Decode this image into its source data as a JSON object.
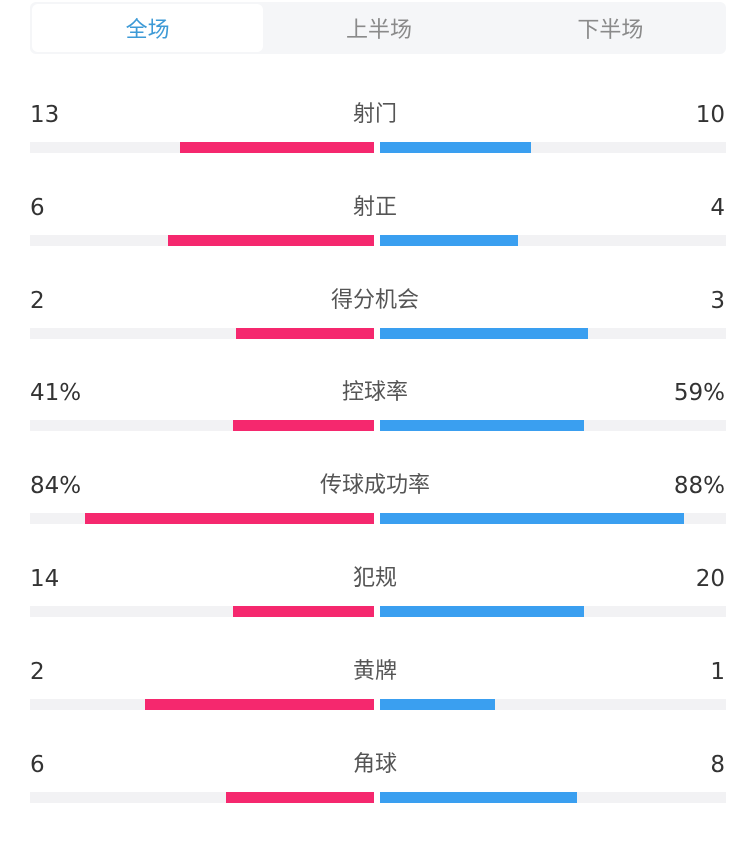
{
  "tabs": [
    {
      "label": "全场",
      "active": true
    },
    {
      "label": "上半场",
      "active": false
    },
    {
      "label": "下半场",
      "active": false
    }
  ],
  "colors": {
    "home": "#f5286e",
    "away": "#3a9ff0",
    "active_tab": "#3d9ad6"
  },
  "stats": [
    {
      "label": "射门",
      "home": "13",
      "away": "10",
      "home_fill": 0.565,
      "away_fill": 0.435
    },
    {
      "label": "射正",
      "home": "6",
      "away": "4",
      "home_fill": 0.6,
      "away_fill": 0.4
    },
    {
      "label": "得分机会",
      "home": "2",
      "away": "3",
      "home_fill": 0.4,
      "away_fill": 0.6
    },
    {
      "label": "控球率",
      "home": "41%",
      "away": "59%",
      "home_fill": 0.41,
      "away_fill": 0.59
    },
    {
      "label": "传球成功率",
      "home": "84%",
      "away": "88%",
      "home_fill": 0.84,
      "away_fill": 0.88
    },
    {
      "label": "犯规",
      "home": "14",
      "away": "20",
      "home_fill": 0.41,
      "away_fill": 0.59
    },
    {
      "label": "黄牌",
      "home": "2",
      "away": "1",
      "home_fill": 0.667,
      "away_fill": 0.333
    },
    {
      "label": "角球",
      "home": "6",
      "away": "8",
      "home_fill": 0.43,
      "away_fill": 0.57
    }
  ]
}
